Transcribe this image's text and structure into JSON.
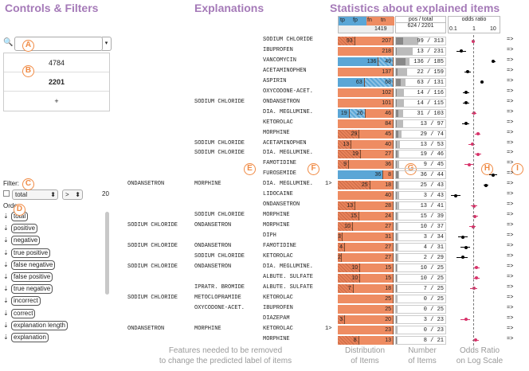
{
  "titles": {
    "controls": "Controls & Filters",
    "explanations": "Explanations",
    "stats": "Statistics about explained items"
  },
  "footers": {
    "features": "Features needed to be removed\nto change the predicted label of items",
    "distribution": "Distribution\nof Items",
    "number": "Number\nof Items",
    "odds": "Odds Ratio\non Log Scale"
  },
  "markers": {
    "A": "A",
    "B": "B",
    "C": "C",
    "D": "D",
    "E": "E",
    "F": "F",
    "G": "G",
    "H": "H",
    "I": "I"
  },
  "controls": {
    "search_value": "",
    "search_icon": "🔍",
    "list": [
      "4784",
      "2201",
      "+"
    ],
    "filter_label": "Filter:",
    "filter_field": "total",
    "filter_op": ">",
    "filter_value": "20",
    "order_label": "Order:",
    "order_items": [
      "total",
      "positive",
      "negative",
      "true positive",
      "false negative",
      "false positive",
      "true negative",
      "incorrect",
      "correct",
      "explanation length",
      "explanation"
    ]
  },
  "header": {
    "tp": "tp",
    "fp": "fp",
    "fn": "fn",
    "tn": "tn",
    "total_cnt": "1419",
    "pos_total_label": "pos / total",
    "pos_total_val": "624 / 2201",
    "odds_label": "odds ratio",
    "ticks": [
      "0.1",
      "1",
      "10"
    ]
  },
  "rows": [
    {
      "c1": "",
      "c2": "",
      "c3": "SODIUM CHLORIDE",
      "gt": "",
      "tp": 0,
      "fp": 0,
      "fn": 93,
      "tn": 207,
      "pt": "99 / 313",
      "or": 0.9,
      "lo": 0.8,
      "hi": 1.05,
      "pink": true
    },
    {
      "c1": "",
      "c2": "",
      "c3": "IBUPROFEN",
      "gt": "",
      "tp": 0,
      "fp": 0,
      "fn": 0,
      "tn": 218,
      "pt": "13 / 231",
      "or": 0.25,
      "lo": 0.15,
      "hi": 0.4,
      "pink": false
    },
    {
      "c1": "",
      "c2": "",
      "c3": "VANCOMYCIN",
      "gt": "",
      "tp": 136,
      "fp": 49,
      "fn": 0,
      "tn": 0,
      "pt": "136 / 185",
      "or": 8,
      "lo": 6.5,
      "hi": 10,
      "pink": false
    },
    {
      "c1": "",
      "c2": "",
      "c3": "ACETAMINOPHEN",
      "gt": "",
      "tp": 0,
      "fp": 0,
      "fn": 0,
      "tn": 137,
      "pt": "22 / 159",
      "or": 0.5,
      "lo": 0.35,
      "hi": 0.7,
      "pink": false
    },
    {
      "c1": "",
      "c2": "",
      "c3": "ASPIRIN",
      "gt": "",
      "tp": 63,
      "fp": 68,
      "fn": 0,
      "tn": 0,
      "pt": "63 / 131",
      "or": 2.3,
      "lo": 1.9,
      "hi": 2.8,
      "pink": false
    },
    {
      "c1": "",
      "c2": "",
      "c3": "OXYCODONE-ACET.",
      "gt": "",
      "tp": 0,
      "fp": 0,
      "fn": 0,
      "tn": 102,
      "pt": "14 / 116",
      "or": 0.4,
      "lo": 0.28,
      "hi": 0.6,
      "pink": false
    },
    {
      "c1": "",
      "c2": "SODIUM CHLORIDE",
      "c3": "ONDANSETRON",
      "gt": "",
      "tp": 0,
      "fp": 0,
      "fn": 0,
      "tn": 101,
      "pt": "14 / 115",
      "or": 0.4,
      "lo": 0.28,
      "hi": 0.6,
      "pink": false
    },
    {
      "c1": "",
      "c2": "",
      "c3": "DIA. MEGLUMINE.",
      "gt": "",
      "tp": 19,
      "fp": 26,
      "fn": 0,
      "tn": 46,
      "pt": "31 / 103",
      "or": 1,
      "lo": 0.75,
      "hi": 1.3,
      "pink": true
    },
    {
      "c1": "",
      "c2": "",
      "c3": "KETOROLAC",
      "gt": "",
      "tp": 0,
      "fp": 0,
      "fn": 0,
      "tn": 84,
      "pt": "13 / 97",
      "or": 0.4,
      "lo": 0.27,
      "hi": 0.6,
      "pink": false
    },
    {
      "c1": "",
      "c2": "",
      "c3": "MORPHINE",
      "gt": "",
      "tp": 0,
      "fp": 0,
      "fn": 29,
      "tn": 45,
      "pt": "29 / 74",
      "or": 1.5,
      "lo": 1.1,
      "hi": 2,
      "pink": true
    },
    {
      "c1": "",
      "c2": "SODIUM CHLORIDE",
      "c3": "ACETAMINOPHEN",
      "gt": "",
      "tp": 0,
      "fp": 0,
      "fn": 13,
      "tn": 40,
      "pt": "13 / 53",
      "or": 0.8,
      "lo": 0.55,
      "hi": 1.1,
      "pink": true
    },
    {
      "c1": "",
      "c2": "SODIUM CHLORIDE",
      "c3": "DIA. MEGLUMINE.",
      "gt": "",
      "tp": 0,
      "fp": 0,
      "fn": 19,
      "tn": 27,
      "pt": "19 / 46",
      "or": 1.5,
      "lo": 1.05,
      "hi": 2.1,
      "pink": true
    },
    {
      "c1": "",
      "c2": "",
      "c3": "FAMOTIDINE",
      "gt": "",
      "tp": 0,
      "fp": 0,
      "fn": 9,
      "tn": 36,
      "pt": "9 / 45",
      "or": 0.6,
      "lo": 0.35,
      "hi": 0.9,
      "pink": true
    },
    {
      "c1": "",
      "c2": "",
      "c3": "FUROSEMIDE",
      "gt": "",
      "tp": 36,
      "fp": 0,
      "fn": 0,
      "tn": 8,
      "pt": "36 / 44",
      "or": 8,
      "lo": 5,
      "hi": 12,
      "pink": false
    },
    {
      "c1": "ONDANSETRON",
      "c2": "MORPHINE",
      "c3": "DIA. MEGLUMINE.",
      "gt": "1>",
      "tp": 0,
      "fp": 0,
      "fn": 25,
      "tn": 18,
      "pt": "25 / 43",
      "or": 3.5,
      "lo": 2.7,
      "hi": 4.5,
      "pink": false
    },
    {
      "c1": "",
      "c2": "",
      "c3": "LIDOCAINE",
      "gt": "",
      "tp": 0,
      "fp": 0,
      "fn": 0,
      "tn": 40,
      "pt": "3 / 43",
      "or": 0.13,
      "lo": 0.08,
      "hi": 0.22,
      "pink": false
    },
    {
      "c1": "",
      "c2": "",
      "c3": "ONDANSETRON",
      "gt": "",
      "tp": 0,
      "fp": 0,
      "fn": 13,
      "tn": 28,
      "pt": "13 / 41",
      "or": 1,
      "lo": 0.7,
      "hi": 1.4,
      "pink": true
    },
    {
      "c1": "",
      "c2": "SODIUM CHLORIDE",
      "c3": "MORPHINE",
      "gt": "",
      "tp": 0,
      "fp": 0,
      "fn": 15,
      "tn": 24,
      "pt": "15 / 39",
      "or": 1.1,
      "lo": 0.8,
      "hi": 1.5,
      "pink": true
    },
    {
      "c1": "SODIUM CHLORIDE",
      "c2": "ONDANSETRON",
      "c3": "MORPHINE",
      "gt": "",
      "tp": 0,
      "fp": 0,
      "fn": 10,
      "tn": 27,
      "pt": "10 / 37",
      "or": 0.9,
      "lo": 0.6,
      "hi": 1.2,
      "pink": true
    },
    {
      "c1": "",
      "c2": "",
      "c3": "DIPH",
      "gt": "",
      "tp": 0,
      "fp": 0,
      "fn": 3,
      "tn": 31,
      "pt": "3 / 34",
      "or": 0.3,
      "lo": 0.17,
      "hi": 0.5,
      "pink": false
    },
    {
      "c1": "SODIUM CHLORIDE",
      "c2": "ONDANSETRON",
      "c3": "FAMOTIDINE",
      "gt": "",
      "tp": 0,
      "fp": 0,
      "fn": 4,
      "tn": 27,
      "pt": "4 / 31",
      "or": 0.4,
      "lo": 0.22,
      "hi": 0.65,
      "pink": false
    },
    {
      "c1": "",
      "c2": "SODIUM CHLORIDE",
      "c3": "KETOROLAC",
      "gt": "",
      "tp": 0,
      "fp": 0,
      "fn": 2,
      "tn": 27,
      "pt": "2 / 29",
      "or": 0.3,
      "lo": 0.15,
      "hi": 0.5,
      "pink": false
    },
    {
      "c1": "SODIUM CHLORIDE",
      "c2": "ONDANSETRON",
      "c3": "DIA. MEGLUMINE.",
      "gt": "",
      "tp": 0,
      "fp": 0,
      "fn": 10,
      "tn": 15,
      "pt": "10 / 25",
      "or": 1.3,
      "lo": 0.9,
      "hi": 1.8,
      "pink": true
    },
    {
      "c1": "",
      "c2": "",
      "c3": "ALBUTE. SULFATE",
      "gt": "",
      "tp": 0,
      "fp": 0,
      "fn": 10,
      "tn": 15,
      "pt": "10 / 25",
      "or": 1.3,
      "lo": 0.9,
      "hi": 1.8,
      "pink": true
    },
    {
      "c1": "",
      "c2": "IPRATR. BROMIDE",
      "c3": "ALBUTE. SULFATE",
      "gt": "",
      "tp": 0,
      "fp": 0,
      "fn": 7,
      "tn": 18,
      "pt": "7 / 25",
      "or": 1,
      "lo": 0.65,
      "hi": 1.4,
      "pink": true
    },
    {
      "c1": "SODIUM CHLORIDE",
      "c2": "METOCLOPRAMIDE",
      "c3": "KETOROLAC",
      "gt": "",
      "tp": 0,
      "fp": 0,
      "fn": 0,
      "tn": 25,
      "pt": "0 / 25",
      "or": 0,
      "lo": 0,
      "hi": 0,
      "pink": false
    },
    {
      "c1": "",
      "c2": "OXYCODONE-ACET.",
      "c3": "IBUPROFEN",
      "gt": "",
      "tp": 0,
      "fp": 0,
      "fn": 0,
      "tn": 25,
      "pt": "0 / 25",
      "or": 0,
      "lo": 0,
      "hi": 0,
      "pink": false
    },
    {
      "c1": "",
      "c2": "",
      "c3": "DIAZEPAM",
      "gt": "",
      "tp": 0,
      "fp": 0,
      "fn": 3,
      "tn": 20,
      "pt": "3 / 23",
      "or": 0.4,
      "lo": 0.22,
      "hi": 0.65,
      "pink": true
    },
    {
      "c1": "ONDANSETRON",
      "c2": "MORPHINE",
      "c3": "KETOROLAC",
      "gt": "1>",
      "tp": 0,
      "fp": 0,
      "fn": 0,
      "tn": 23,
      "pt": "0 / 23",
      "or": 0,
      "lo": 0,
      "hi": 0,
      "pink": false
    },
    {
      "c1": "",
      "c2": "",
      "c3": "MORPHINE",
      "gt": "",
      "tp": 0,
      "fp": 0,
      "fn": 8,
      "tn": 13,
      "pt": "8 / 21",
      "or": 1.2,
      "lo": 0.8,
      "hi": 1.7,
      "pink": true
    }
  ],
  "arrow": "=>"
}
